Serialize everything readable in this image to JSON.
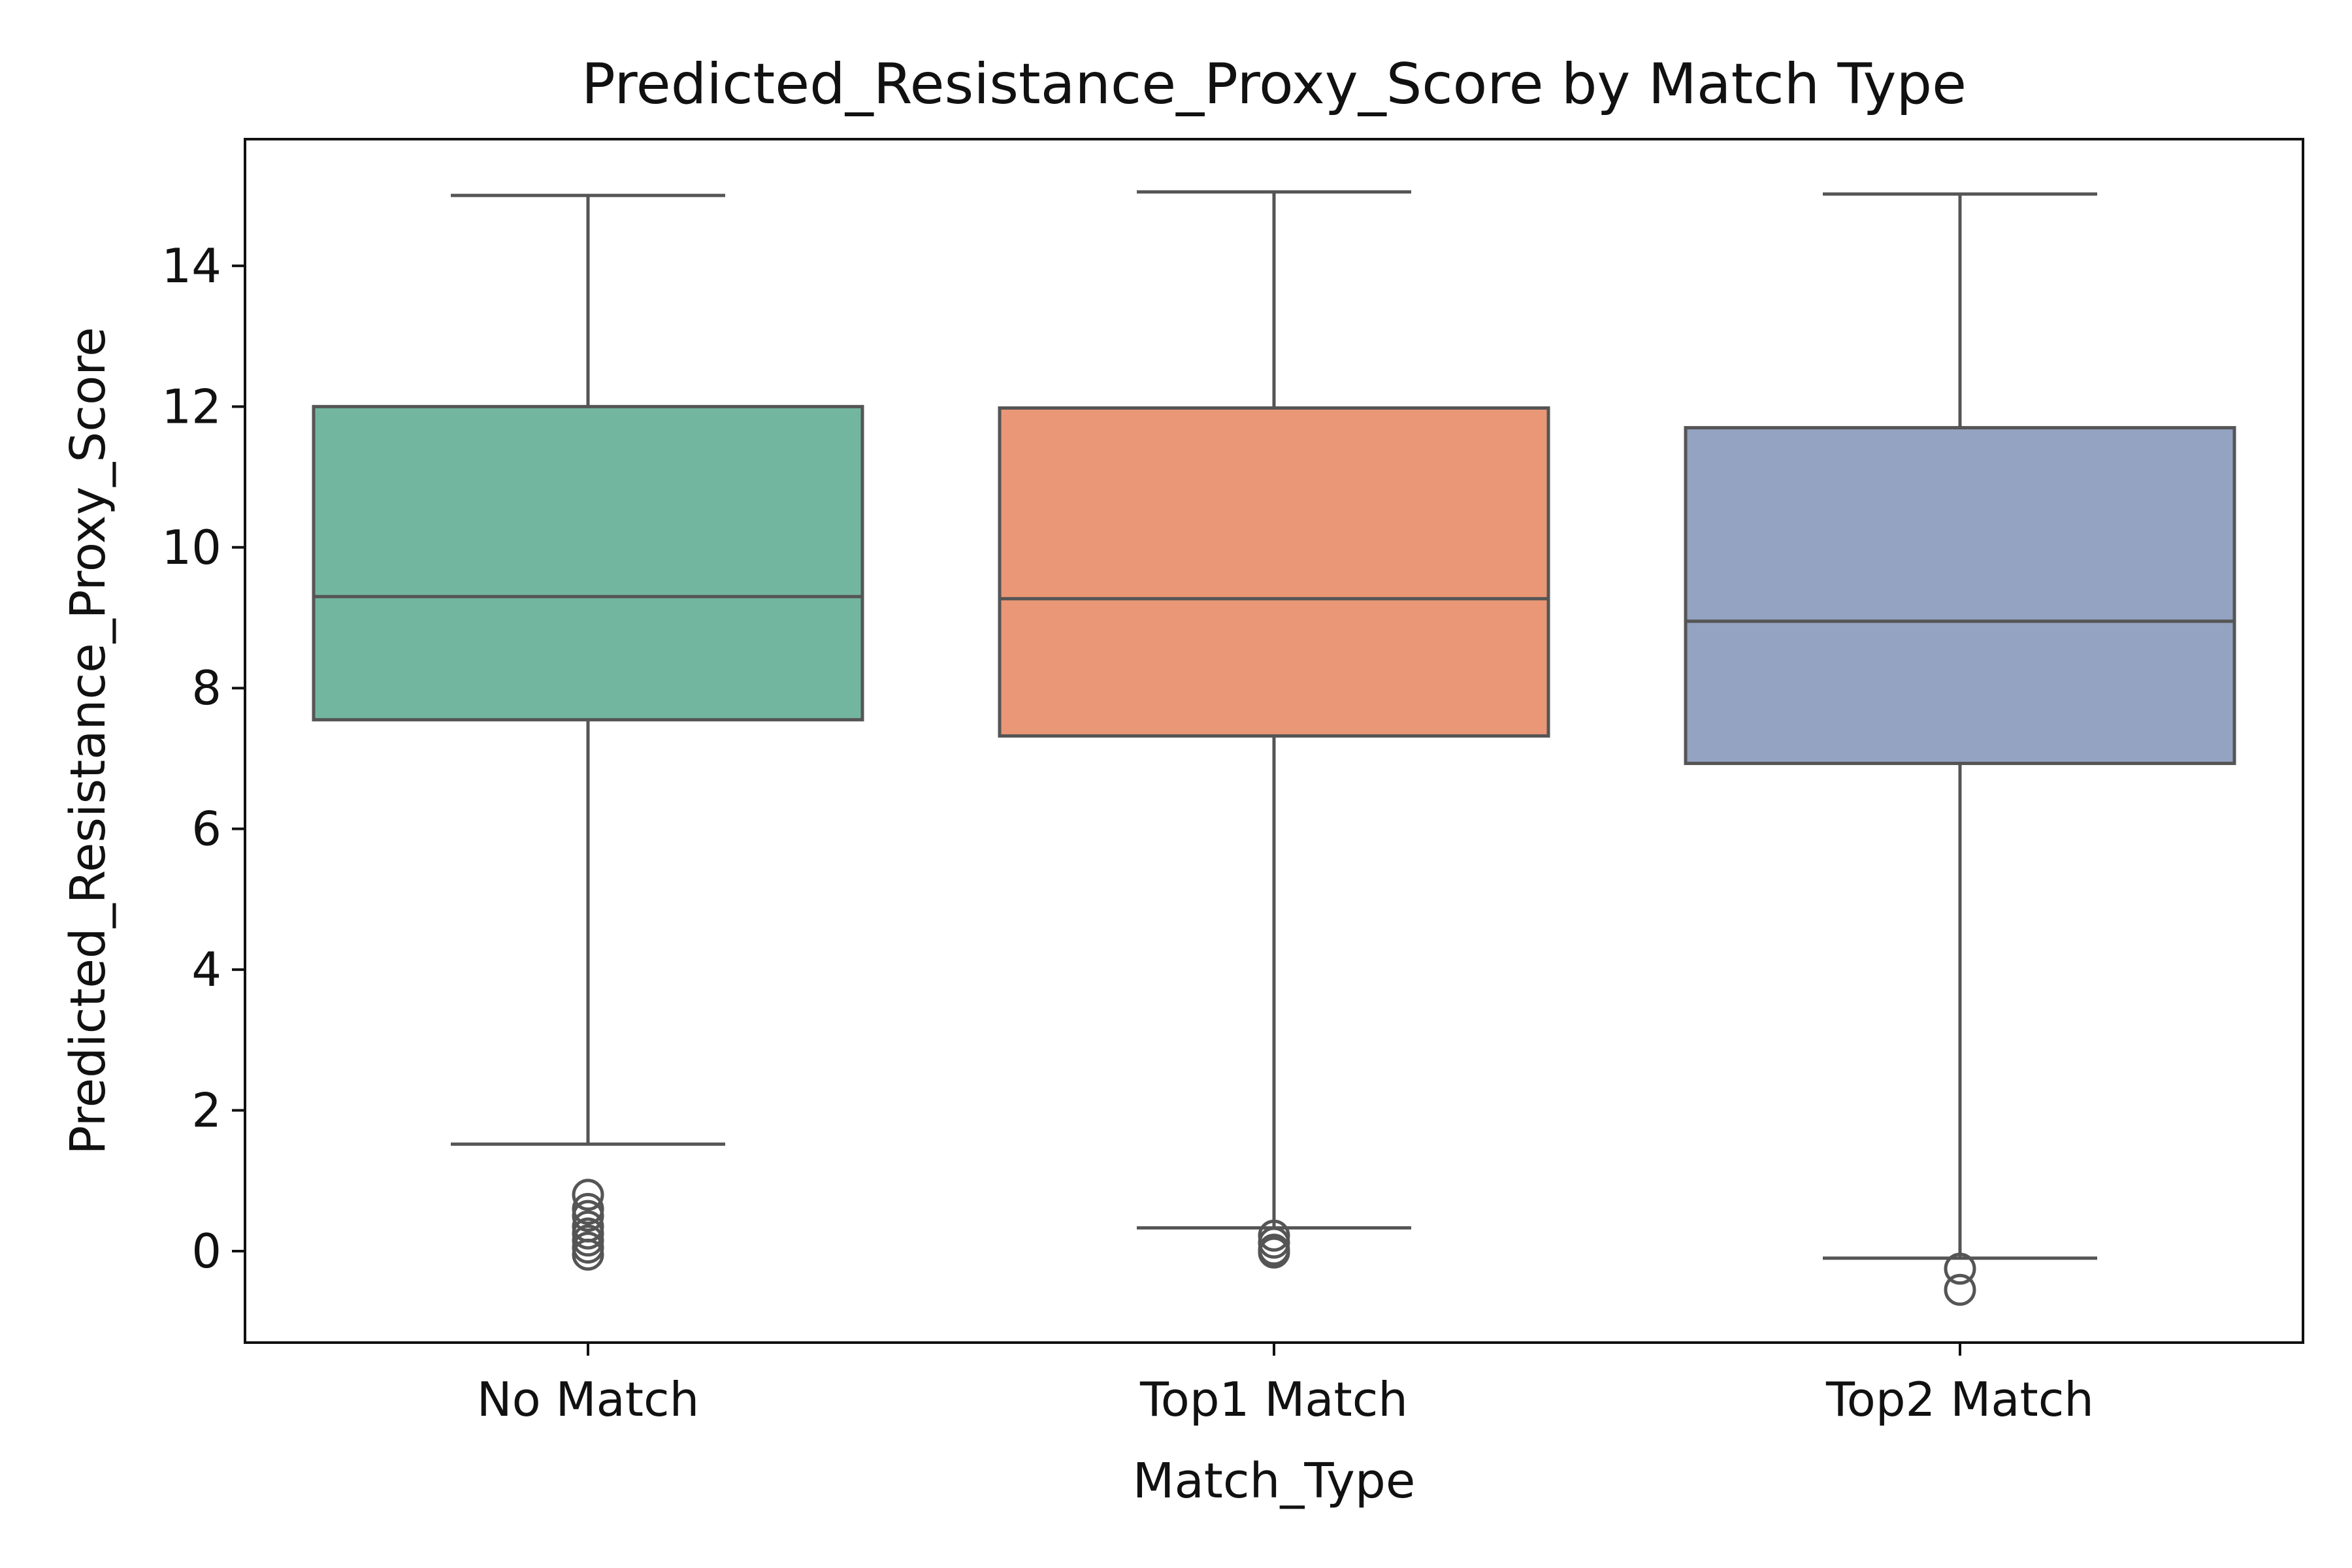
{
  "chart_data": {
    "type": "box",
    "title": "Predicted_Resistance_Proxy_Score by Match Type",
    "xlabel": "Match_Type",
    "ylabel": "Predicted_Resistance_Proxy_Score",
    "ylim": [
      -1.3,
      15.8
    ],
    "yticks": [
      0,
      2,
      4,
      6,
      8,
      10,
      12,
      14
    ],
    "grid": false,
    "categories": [
      "No Match",
      "Top1 Match",
      "Top2 Match"
    ],
    "boxes": [
      {
        "category": "No Match",
        "color": "#73B6A0",
        "whisker_low": 1.52,
        "q1": 7.55,
        "median": 9.3,
        "q3": 12.0,
        "whisker_high": 15.0,
        "outliers": [
          0.8,
          0.6,
          0.5,
          0.35,
          0.25,
          0.15,
          0.05,
          -0.05
        ]
      },
      {
        "category": "Top1 Match",
        "color": "#E99776",
        "whisker_low": 0.33,
        "q1": 7.32,
        "median": 9.27,
        "q3": 11.98,
        "whisker_high": 15.05,
        "outliers": [
          0.22,
          0.12,
          0.02,
          -0.02
        ]
      },
      {
        "category": "Top2 Match",
        "color": "#94A3C2",
        "whisker_low": -0.1,
        "q1": 6.93,
        "median": 8.95,
        "q3": 11.7,
        "whisker_high": 15.02,
        "outliers": [
          -0.25,
          -0.55
        ]
      }
    ]
  }
}
